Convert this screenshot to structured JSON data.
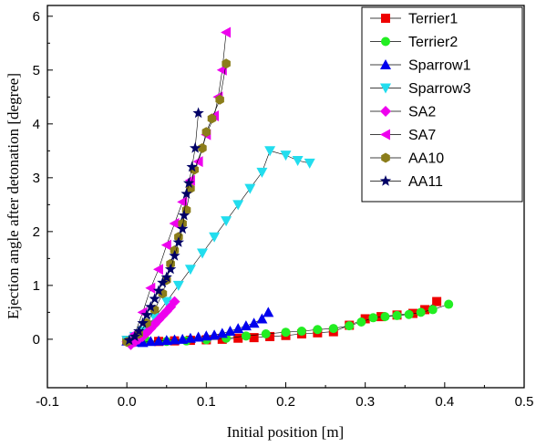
{
  "chart_data": {
    "type": "scatter",
    "xlabel": "Initial position [m]",
    "ylabel": "Ejection angle after detonation [degree]",
    "xlim": [
      -0.1,
      0.5
    ],
    "ylim": [
      -0.9,
      6.2
    ],
    "x_ticks": [
      -0.1,
      0,
      0.1,
      0.2,
      0.3,
      0.4,
      0.5
    ],
    "x_tick_labels": [
      "-0.1",
      "0.0",
      "0.1",
      "0.2",
      "0.3",
      "0.4",
      "0.5"
    ],
    "y_ticks": [
      0,
      1,
      2,
      3,
      4,
      5,
      6
    ],
    "y_tick_labels": [
      "0",
      "1",
      "2",
      "3",
      "4",
      "5",
      "6"
    ],
    "grid": false,
    "legend_position": "top-right",
    "series": [
      {
        "name": "Terrier1",
        "color": "#ee0000",
        "marker": "square",
        "points": [
          [
            0.0,
            -0.02
          ],
          [
            0.02,
            -0.03
          ],
          [
            0.04,
            -0.04
          ],
          [
            0.06,
            -0.03
          ],
          [
            0.08,
            -0.02
          ],
          [
            0.1,
            -0.01
          ],
          [
            0.12,
            0.0
          ],
          [
            0.14,
            0.02
          ],
          [
            0.16,
            0.03
          ],
          [
            0.18,
            0.05
          ],
          [
            0.2,
            0.07
          ],
          [
            0.22,
            0.1
          ],
          [
            0.24,
            0.12
          ],
          [
            0.26,
            0.14
          ],
          [
            0.28,
            0.26
          ],
          [
            0.3,
            0.38
          ],
          [
            0.32,
            0.42
          ],
          [
            0.34,
            0.45
          ],
          [
            0.36,
            0.48
          ],
          [
            0.375,
            0.55
          ],
          [
            0.39,
            0.7
          ]
        ]
      },
      {
        "name": "Terrier2",
        "color": "#22ee22",
        "marker": "circle",
        "points": [
          [
            0.0,
            -0.02
          ],
          [
            0.025,
            -0.03
          ],
          [
            0.05,
            -0.04
          ],
          [
            0.075,
            -0.03
          ],
          [
            0.1,
            -0.01
          ],
          [
            0.125,
            0.02
          ],
          [
            0.15,
            0.06
          ],
          [
            0.175,
            0.1
          ],
          [
            0.2,
            0.13
          ],
          [
            0.22,
            0.15
          ],
          [
            0.24,
            0.18
          ],
          [
            0.26,
            0.2
          ],
          [
            0.28,
            0.25
          ],
          [
            0.295,
            0.32
          ],
          [
            0.31,
            0.4
          ],
          [
            0.325,
            0.42
          ],
          [
            0.34,
            0.44
          ],
          [
            0.355,
            0.46
          ],
          [
            0.37,
            0.5
          ],
          [
            0.385,
            0.55
          ],
          [
            0.405,
            0.65
          ]
        ]
      },
      {
        "name": "Sparrow1",
        "color": "#0000ee",
        "marker": "triangle-up",
        "points": [
          [
            0.0,
            -0.03
          ],
          [
            0.01,
            -0.05
          ],
          [
            0.02,
            -0.06
          ],
          [
            0.03,
            -0.04
          ],
          [
            0.04,
            -0.03
          ],
          [
            0.05,
            -0.02
          ],
          [
            0.06,
            -0.01
          ],
          [
            0.07,
            0.0
          ],
          [
            0.08,
            0.02
          ],
          [
            0.09,
            0.04
          ],
          [
            0.1,
            0.06
          ],
          [
            0.11,
            0.08
          ],
          [
            0.12,
            0.11
          ],
          [
            0.13,
            0.15
          ],
          [
            0.14,
            0.2
          ],
          [
            0.15,
            0.25
          ],
          [
            0.16,
            0.3
          ],
          [
            0.17,
            0.38
          ],
          [
            0.178,
            0.5
          ]
        ]
      },
      {
        "name": "Sparrow3",
        "color": "#22ddee",
        "marker": "triangle-down",
        "points": [
          [
            0.0,
            -0.02
          ],
          [
            0.01,
            0.05
          ],
          [
            0.02,
            0.15
          ],
          [
            0.035,
            0.4
          ],
          [
            0.05,
            0.7
          ],
          [
            0.065,
            1.0
          ],
          [
            0.08,
            1.3
          ],
          [
            0.095,
            1.6
          ],
          [
            0.11,
            1.9
          ],
          [
            0.125,
            2.2
          ],
          [
            0.14,
            2.5
          ],
          [
            0.155,
            2.8
          ],
          [
            0.17,
            3.1
          ],
          [
            0.18,
            3.5
          ],
          [
            0.2,
            3.42
          ],
          [
            0.215,
            3.32
          ],
          [
            0.23,
            3.27
          ]
        ]
      },
      {
        "name": "SA2",
        "color": "#ee00ee",
        "marker": "diamond",
        "points": [
          [
            0.005,
            -0.1
          ],
          [
            0.01,
            -0.05
          ],
          [
            0.015,
            0.0
          ],
          [
            0.02,
            0.05
          ],
          [
            0.025,
            0.12
          ],
          [
            0.03,
            0.2
          ],
          [
            0.035,
            0.28
          ],
          [
            0.04,
            0.36
          ],
          [
            0.045,
            0.44
          ],
          [
            0.05,
            0.52
          ],
          [
            0.055,
            0.6
          ],
          [
            0.06,
            0.7
          ]
        ]
      },
      {
        "name": "SA7",
        "color": "#ee00ee",
        "marker": "triangle-left",
        "points": [
          [
            0.0,
            -0.05
          ],
          [
            0.01,
            0.1
          ],
          [
            0.02,
            0.5
          ],
          [
            0.03,
            0.95
          ],
          [
            0.04,
            1.3
          ],
          [
            0.05,
            1.75
          ],
          [
            0.06,
            2.15
          ],
          [
            0.07,
            2.55
          ],
          [
            0.08,
            2.95
          ],
          [
            0.09,
            3.3
          ],
          [
            0.1,
            3.8
          ],
          [
            0.11,
            4.15
          ],
          [
            0.115,
            4.5
          ],
          [
            0.12,
            5.0
          ],
          [
            0.125,
            5.7
          ]
        ]
      },
      {
        "name": "AA10",
        "color": "#8b7d1a",
        "marker": "hexagon",
        "points": [
          [
            0.0,
            -0.05
          ],
          [
            0.015,
            0.1
          ],
          [
            0.025,
            0.3
          ],
          [
            0.035,
            0.55
          ],
          [
            0.045,
            0.85
          ],
          [
            0.05,
            1.1
          ],
          [
            0.055,
            1.4
          ],
          [
            0.06,
            1.65
          ],
          [
            0.065,
            1.9
          ],
          [
            0.07,
            2.15
          ],
          [
            0.075,
            2.4
          ],
          [
            0.08,
            2.8
          ],
          [
            0.085,
            3.15
          ],
          [
            0.095,
            3.55
          ],
          [
            0.1,
            3.85
          ],
          [
            0.107,
            4.1
          ],
          [
            0.117,
            4.45
          ],
          [
            0.125,
            5.12
          ]
        ]
      },
      {
        "name": "AA11",
        "color": "#000066",
        "marker": "star",
        "points": [
          [
            0.003,
            -0.02
          ],
          [
            0.01,
            0.05
          ],
          [
            0.015,
            0.15
          ],
          [
            0.02,
            0.3
          ],
          [
            0.025,
            0.45
          ],
          [
            0.03,
            0.6
          ],
          [
            0.035,
            0.75
          ],
          [
            0.04,
            0.9
          ],
          [
            0.045,
            1.05
          ],
          [
            0.05,
            1.15
          ],
          [
            0.055,
            1.3
          ],
          [
            0.06,
            1.55
          ],
          [
            0.065,
            1.8
          ],
          [
            0.07,
            2.05
          ],
          [
            0.072,
            2.3
          ],
          [
            0.075,
            2.7
          ],
          [
            0.078,
            2.9
          ],
          [
            0.082,
            3.2
          ],
          [
            0.086,
            3.55
          ],
          [
            0.09,
            4.2
          ]
        ]
      }
    ]
  }
}
